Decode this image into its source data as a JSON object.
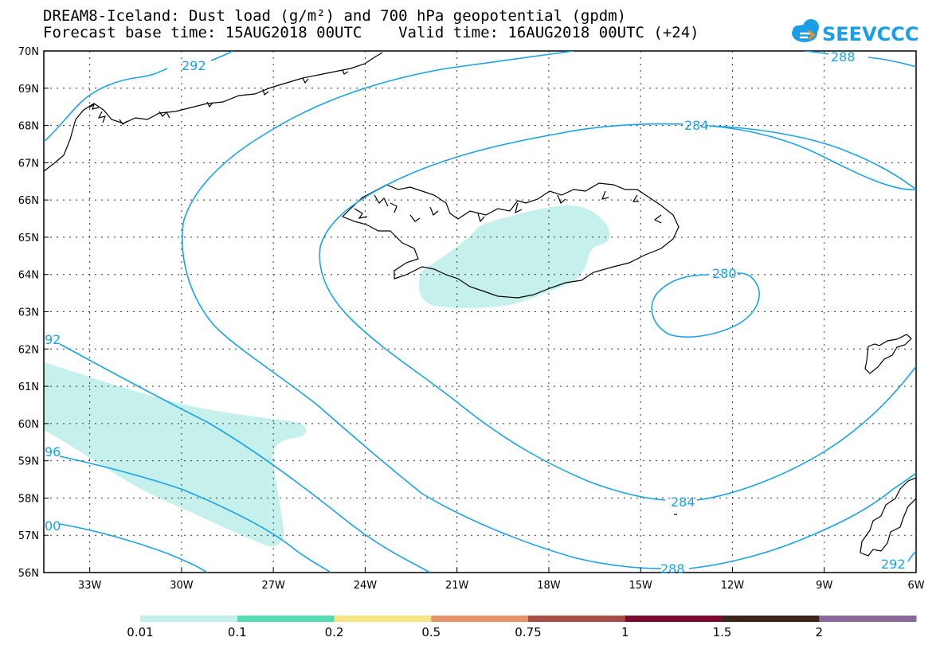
{
  "header": {
    "title_line1": "DREAM8-Iceland: Dust load (g/m²) and 700 hPa geopotential (gpdm)",
    "title_line2": "Forecast base time: 15AUG2018 00UTC    Valid time: 16AUG2018 00UTC (+24)"
  },
  "logo": {
    "text": "SEEVCCC",
    "brand_color": "#1a9ee6",
    "accent_color": "#f28c1e",
    "icon": "cloud-icon"
  },
  "map": {
    "lon_range": [
      -34.5,
      -6
    ],
    "lat_range": [
      56,
      70
    ],
    "lat_labels": [
      "70N",
      "69N",
      "68N",
      "67N",
      "66N",
      "65N",
      "64N",
      "63N",
      "62N",
      "61N",
      "60N",
      "59N",
      "58N",
      "57N",
      "56N"
    ],
    "lon_labels": [
      "33W",
      "30W",
      "27W",
      "24W",
      "21W",
      "18W",
      "15W",
      "12W",
      "9W",
      "6W"
    ],
    "contour_labels": [
      "292",
      "288",
      "284",
      "280",
      "284",
      "288",
      "92",
      "96",
      "00",
      "292"
    ],
    "contour_color": "#1aa3e8",
    "dust_color": "#c5f0eb"
  },
  "colorbar": {
    "labels": [
      "0.01",
      "0.1",
      "0.2",
      "0.5",
      "0.75",
      "1",
      "1.5",
      "2"
    ],
    "colors": [
      "#c5f0eb",
      "#55dcb4",
      "#f5e682",
      "#e8936e",
      "#a84d48",
      "#7b0a2c",
      "#3d2619",
      "#8b6a9b"
    ]
  }
}
